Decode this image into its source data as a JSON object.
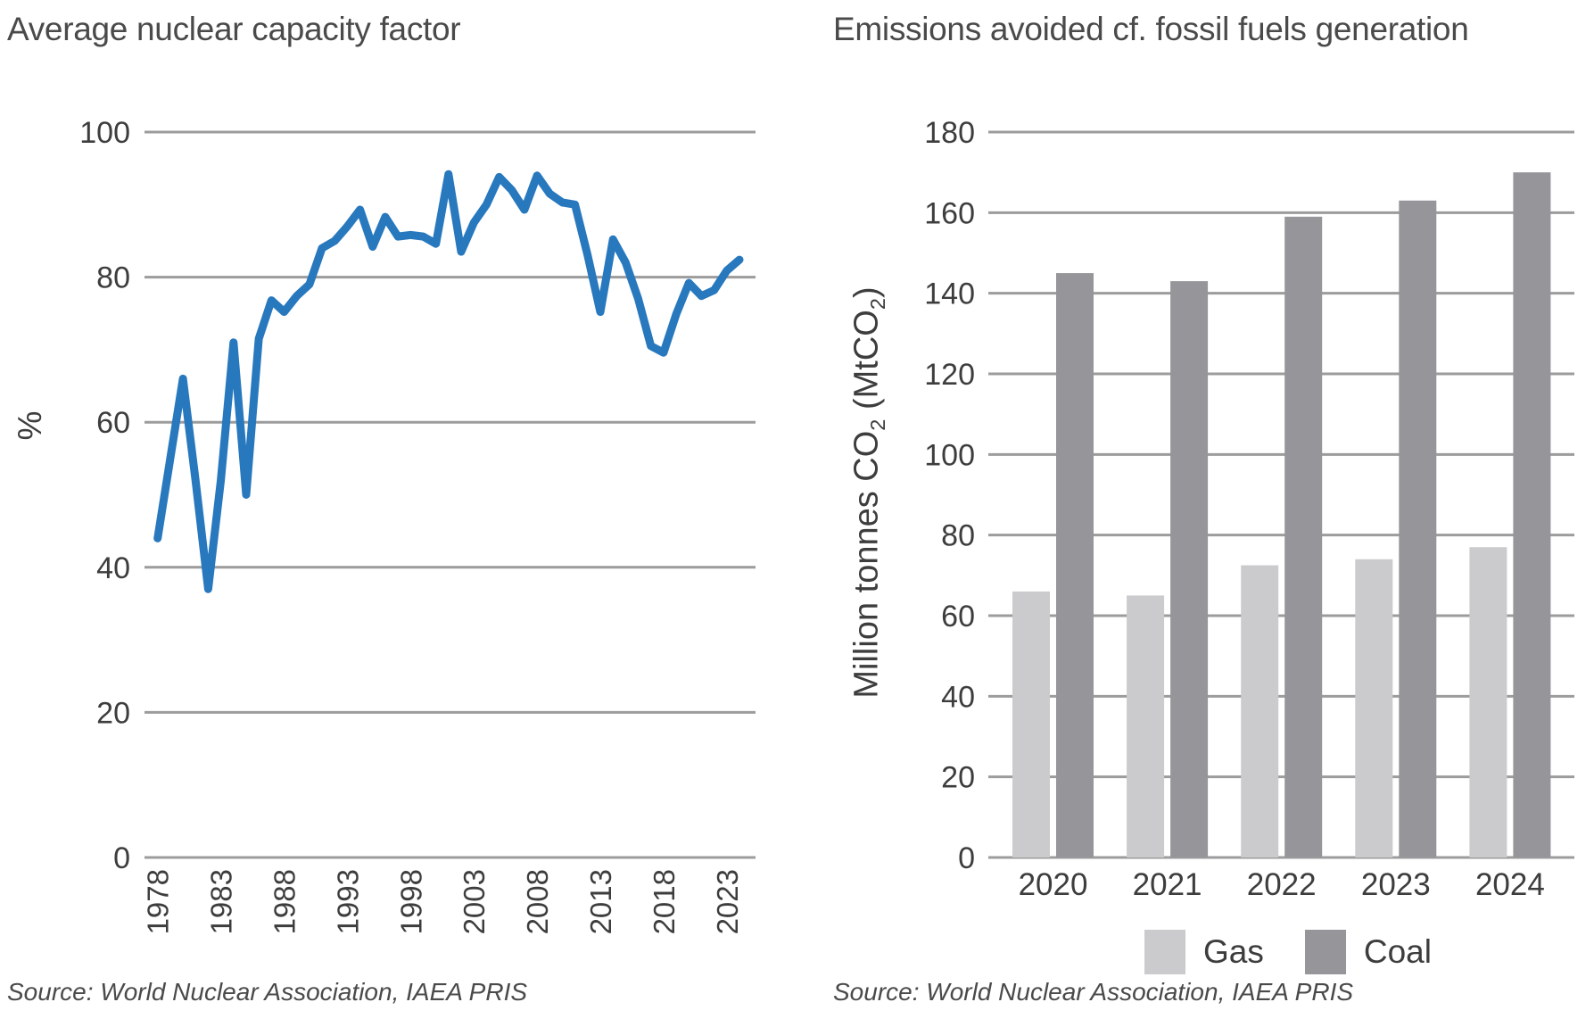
{
  "colors": {
    "line_blue": "#2878be",
    "grid_gray": "#9c9c9c",
    "gas_gray": "#cbcbce",
    "coal_gray": "#96969a",
    "title_gray": "#4a4a4a",
    "tick_gray": "#3d3d3d"
  },
  "left_chart": {
    "source": "Source: World Nuclear Association, IAEA PRIS"
  },
  "right_chart": {
    "source": "Source: World Nuclear Association, IAEA PRIS",
    "ylabel_parts": [
      {
        "text": "Million tonnes CO",
        "sub": false
      },
      {
        "text": "2",
        "sub": true
      },
      {
        "text": " (MtCO",
        "sub": false
      },
      {
        "text": "2",
        "sub": true
      },
      {
        "text": ")",
        "sub": false
      }
    ]
  },
  "chart_data": [
    {
      "type": "line",
      "title": "Average nuclear capacity factor",
      "ylabel": "%",
      "ylim": [
        0,
        100
      ],
      "yticks": [
        0,
        20,
        40,
        60,
        80,
        100
      ],
      "xticks": [
        1978,
        1983,
        1988,
        1993,
        1998,
        2003,
        2008,
        2013,
        2018,
        2023
      ],
      "grid": true,
      "x": [
        1978,
        1979,
        1980,
        1981,
        1982,
        1983,
        1984,
        1985,
        1986,
        1987,
        1988,
        1989,
        1990,
        1991,
        1992,
        1993,
        1994,
        1995,
        1996,
        1997,
        1998,
        1999,
        2000,
        2001,
        2002,
        2003,
        2004,
        2005,
        2006,
        2007,
        2008,
        2009,
        2010,
        2011,
        2012,
        2013,
        2014,
        2015,
        2016,
        2017,
        2018,
        2019,
        2020,
        2021,
        2022,
        2023,
        2024
      ],
      "values": [
        44,
        55,
        66,
        52,
        37,
        52,
        71,
        50,
        71.5,
        76.8,
        75.2,
        77.4,
        79,
        84,
        85,
        87,
        89.3,
        84.2,
        88.3,
        85.6,
        85.8,
        85.6,
        84.6,
        94.2,
        83.5,
        87.5,
        90,
        93.8,
        92,
        89.3,
        94,
        91.5,
        90.3,
        90,
        83,
        75.2,
        85.2,
        82,
        77,
        70.5,
        69.6,
        74.9,
        79.2,
        77.4,
        78.2,
        80.9,
        82.4
      ],
      "series_name": "Average nuclear capacity factor (%)"
    },
    {
      "type": "bar",
      "title": "Emissions avoided cf. fossil fuels generation",
      "ylabel": "Million tonnes CO2 (MtCO2)",
      "ylim": [
        0,
        180
      ],
      "yticks": [
        0,
        20,
        40,
        60,
        80,
        100,
        120,
        140,
        160,
        180
      ],
      "grid": true,
      "categories": [
        "2020",
        "2021",
        "2022",
        "2023",
        "2024"
      ],
      "series": [
        {
          "name": "Gas",
          "values": [
            66,
            65,
            72.5,
            74,
            77
          ]
        },
        {
          "name": "Coal",
          "values": [
            145,
            143,
            159,
            163,
            170
          ]
        }
      ],
      "legend_position": "bottom"
    }
  ]
}
